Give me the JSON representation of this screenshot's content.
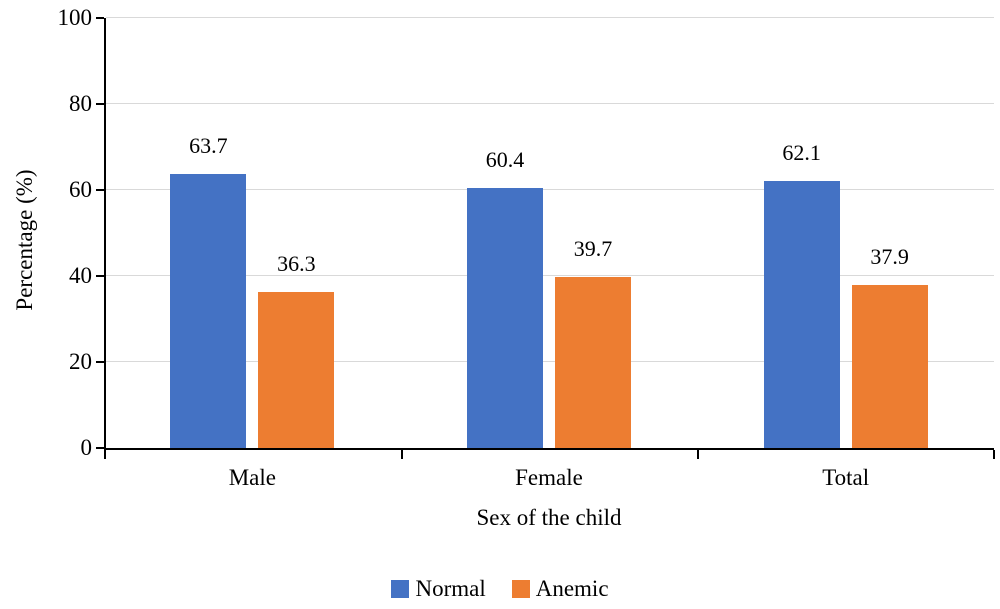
{
  "chart_data": {
    "type": "bar",
    "title": "",
    "categories": [
      "Male",
      "Female",
      "Total"
    ],
    "series": [
      {
        "name": "Normal",
        "color": "#4472c4",
        "values": [
          63.7,
          60.4,
          62.1
        ]
      },
      {
        "name": "Anemic",
        "color": "#ed7d31",
        "values": [
          36.3,
          39.7,
          37.9
        ]
      }
    ],
    "value_label_decimals": 1,
    "xlabel": "Sex of the child",
    "ylabel": "Percentage (%)",
    "ylim": [
      0,
      100
    ],
    "yticks": [
      0,
      20,
      40,
      60,
      80,
      100
    ],
    "grid": true,
    "legend_position": "bottom",
    "colors": {
      "grid": "#d9d9d9",
      "axis": "#000000",
      "text": "#000000"
    }
  }
}
